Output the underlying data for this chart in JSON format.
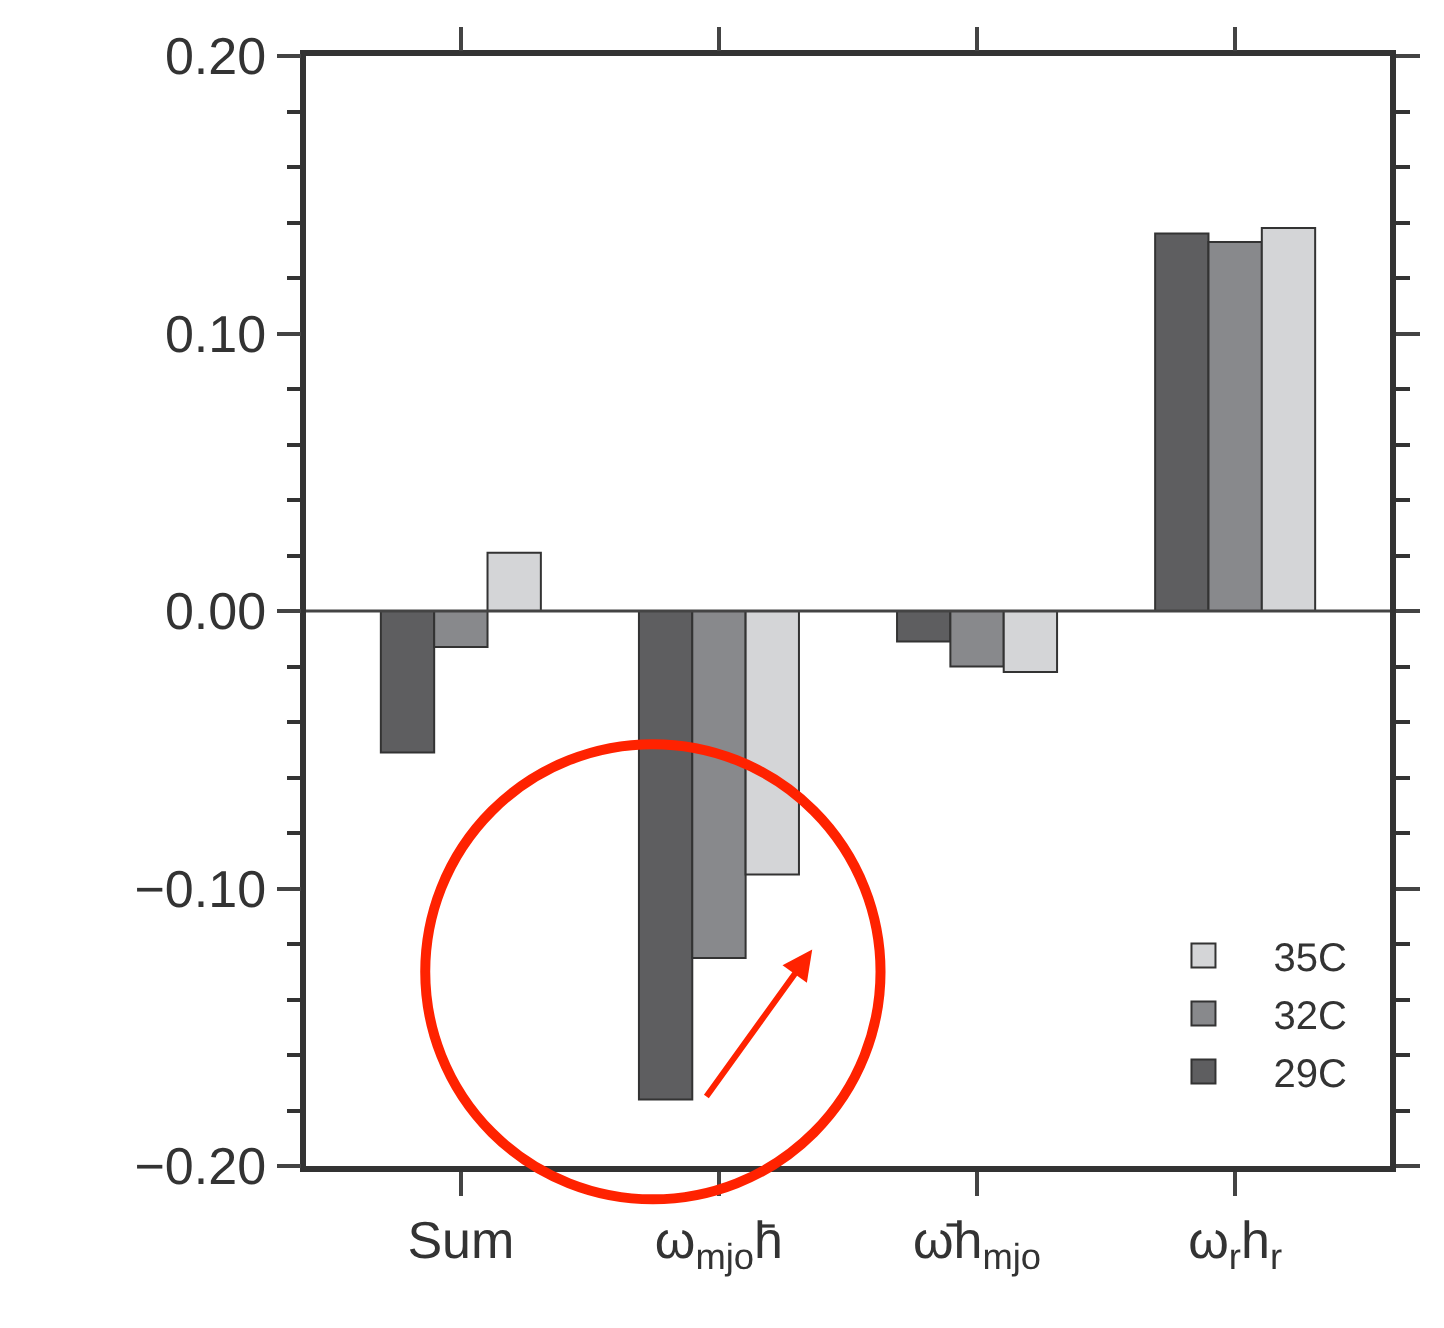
{
  "chart_data": {
    "type": "bar",
    "categories": [
      "Sum",
      "ω$_{mjo}$h̄",
      "ω̄h$_{mjo}$",
      "ω$_{r}$h$_{r}$"
    ],
    "series": [
      {
        "name": "29C",
        "color": "#5e5e60",
        "values": [
          -0.051,
          -0.176,
          -0.011,
          0.136
        ]
      },
      {
        "name": "32C",
        "color": "#88898c",
        "values": [
          -0.013,
          -0.125,
          -0.02,
          0.133
        ]
      },
      {
        "name": "35C",
        "color": "#d4d5d7",
        "values": [
          0.021,
          -0.095,
          -0.022,
          0.138
        ]
      }
    ],
    "ylim": [
      -0.2,
      0.2
    ],
    "yticks": [
      {
        "value": 0.2,
        "label": "0.20"
      },
      {
        "value": 0.1,
        "label": "0.10"
      },
      {
        "value": 0,
        "label": "0.00"
      },
      {
        "value": -0.1,
        "label": "−0.10"
      },
      {
        "value": -0.2,
        "label": "−0.20"
      }
    ],
    "ref_lines": [
      {
        "axis": "y",
        "value": 0,
        "color": "#444444"
      }
    ],
    "legend": "bottom right"
  }
}
